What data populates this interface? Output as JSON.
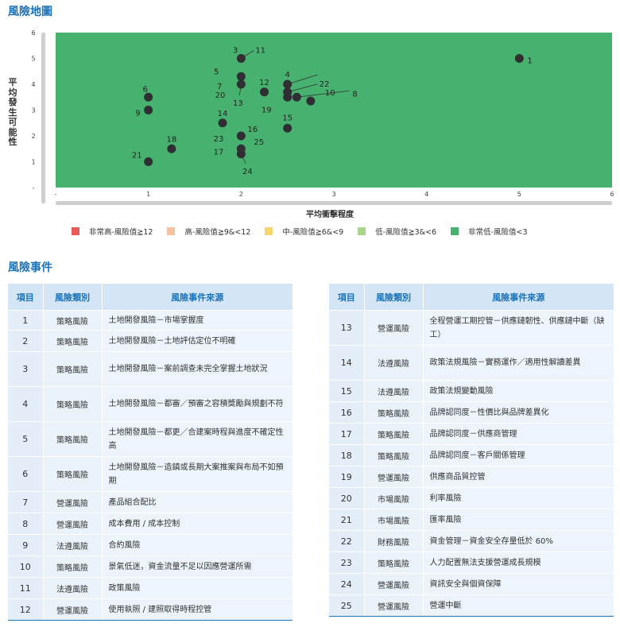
{
  "title_map": "風險地圖",
  "title_events": "風險事件",
  "chart_data": {
    "type": "scatter",
    "xlabel": "平均衝擊程度",
    "ylabel": "平均發生可能性",
    "xlim": [
      0,
      6
    ],
    "ylim": [
      0,
      6
    ],
    "x_ticks": [
      "-",
      "1",
      "2",
      "3",
      "4",
      "5",
      "6"
    ],
    "y_ticks": [
      "-",
      "1",
      "2",
      "3",
      "4",
      "5",
      "6"
    ],
    "zones": [
      {
        "label": "非常高-風險值≧12",
        "color": "#e85a57",
        "min": 12
      },
      {
        "label": "高-風險值≧9&<12",
        "color": "#f5c1a5",
        "min": 9
      },
      {
        "label": "中-風險值≧6&<9",
        "color": "#f6d670",
        "min": 6
      },
      {
        "label": "低-風險值≧3&<6",
        "color": "#a9d48c",
        "min": 3
      },
      {
        "label": "非常低-風險值<3",
        "color": "#47b26f",
        "min": 0
      }
    ],
    "points": [
      {
        "id": "1",
        "x": 5.0,
        "y": 5.0
      },
      {
        "id": "3",
        "x": 2.0,
        "y": 5.0
      },
      {
        "id": "11",
        "x": 2.0,
        "y": 5.0
      },
      {
        "id": "5",
        "x": 2.0,
        "y": 4.3
      },
      {
        "id": "7",
        "x": 2.0,
        "y": 4.0
      },
      {
        "id": "20",
        "x": 2.0,
        "y": 4.0
      },
      {
        "id": "13",
        "x": 2.0,
        "y": 4.0
      },
      {
        "id": "12",
        "x": 2.25,
        "y": 3.7
      },
      {
        "id": "4",
        "x": 2.5,
        "y": 4.0
      },
      {
        "id": "22",
        "x": 2.5,
        "y": 3.7
      },
      {
        "id": "19",
        "x": 2.5,
        "y": 3.5
      },
      {
        "id": "8",
        "x": 2.6,
        "y": 3.5
      },
      {
        "id": "10",
        "x": 2.75,
        "y": 3.35
      },
      {
        "id": "6",
        "x": 1.0,
        "y": 3.5
      },
      {
        "id": "9",
        "x": 1.0,
        "y": 3.0
      },
      {
        "id": "14",
        "x": 1.8,
        "y": 2.5
      },
      {
        "id": "15",
        "x": 2.5,
        "y": 2.3
      },
      {
        "id": "16",
        "x": 2.0,
        "y": 2.0
      },
      {
        "id": "23",
        "x": 2.0,
        "y": 2.0
      },
      {
        "id": "25",
        "x": 2.0,
        "y": 2.0
      },
      {
        "id": "17",
        "x": 2.0,
        "y": 1.5
      },
      {
        "id": "24",
        "x": 2.0,
        "y": 1.3
      },
      {
        "id": "18",
        "x": 1.25,
        "y": 1.5
      },
      {
        "id": "21",
        "x": 1.0,
        "y": 1.0
      }
    ]
  },
  "table": {
    "headers": [
      "項目",
      "風險類別",
      "風險事件來源"
    ],
    "rows_left": [
      {
        "no": "1",
        "cat": "策略風險",
        "src": "土地開發風險－市場掌握度"
      },
      {
        "no": "2",
        "cat": "策略風險",
        "src": "土地開發風險－土地評估定位不明確"
      },
      {
        "no": "3",
        "cat": "策略風險",
        "src": "土地開發風險－案前調查未完全掌握土地狀況"
      },
      {
        "no": "4",
        "cat": "策略風險",
        "src": "土地開發風險－都審／預審之容積獎勵與規劃不符"
      },
      {
        "no": "5",
        "cat": "策略風險",
        "src": "土地開發風險－都更／合建案時程與進度不確定性高"
      },
      {
        "no": "6",
        "cat": "策略風險",
        "src": "土地開發風險－造鎮或長期大案推案與布局不如預期"
      },
      {
        "no": "7",
        "cat": "營運風險",
        "src": "產品組合配比"
      },
      {
        "no": "8",
        "cat": "營運風險",
        "src": "成本費用 / 成本控制"
      },
      {
        "no": "9",
        "cat": "法遵風險",
        "src": "合約風險"
      },
      {
        "no": "10",
        "cat": "策略風險",
        "src": "景氣低迷，資金流量不足以因應營運所需"
      },
      {
        "no": "11",
        "cat": "法遵風險",
        "src": "政策風險"
      },
      {
        "no": "12",
        "cat": "營運風險",
        "src": "使用執照 / 建照取得時程控管"
      }
    ],
    "rows_right": [
      {
        "no": "13",
        "cat": "營運風險",
        "src": "全程營運工期控管－供應鏈韌性、供應鏈中斷（缺工）"
      },
      {
        "no": "14",
        "cat": "法遵風險",
        "src": "政策法規風險－實務運作／適用性解讀差異"
      },
      {
        "no": "15",
        "cat": "法遵風險",
        "src": "政策法規變動風險"
      },
      {
        "no": "16",
        "cat": "策略風險",
        "src": "品牌認同度－性價比與品牌差異化"
      },
      {
        "no": "17",
        "cat": "策略風險",
        "src": "品牌認同度－供應商管理"
      },
      {
        "no": "18",
        "cat": "策略風險",
        "src": "品牌認同度－客戶關係管理"
      },
      {
        "no": "19",
        "cat": "營運風險",
        "src": "供應商品質控管"
      },
      {
        "no": "20",
        "cat": "市場風險",
        "src": "利率風險"
      },
      {
        "no": "21",
        "cat": "市場風險",
        "src": "匯率風險"
      },
      {
        "no": "22",
        "cat": "財務風險",
        "src": "資金管理－資金安全存量低於 60%"
      },
      {
        "no": "23",
        "cat": "策略風險",
        "src": "人力配置無法支援營運成長規模"
      },
      {
        "no": "24",
        "cat": "營運風險",
        "src": "資訊安全與個資保障"
      },
      {
        "no": "25",
        "cat": "營運風險",
        "src": "營運中斷"
      }
    ]
  }
}
